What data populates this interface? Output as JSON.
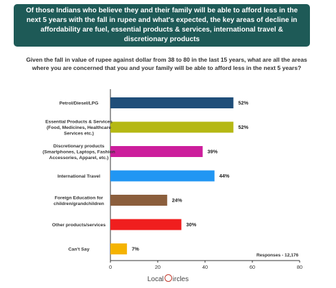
{
  "banner": "Of those Indians who believe they and their family will be able to afford less in the next 5 years with the fall in rupee and what's expected, the key areas of decline in affordability are fuel, essential products & services, international travel & discretionary products",
  "question": "Given the fall in value of rupee against dollar from 38 to 80 in the last 15 years, what are all the areas where you are concerned that you and your family will be able to afford less in the next 5 years?",
  "responses": "Responses - 12,176",
  "logo": {
    "left": "Local",
    "right": "ircles"
  },
  "chart_data": {
    "type": "bar",
    "orientation": "horizontal",
    "categories": [
      [
        "Petrol/Diesel/LPG"
      ],
      [
        "Essential Products & Services",
        "(Food, Medicines, Healthcare",
        "Services etc.)"
      ],
      [
        "Discretionary products",
        "(Smartphones, Laptops, Fashion",
        "Accessories, Apparel, etc.)"
      ],
      [
        "International Travel"
      ],
      [
        "Foreign Education for",
        "children/grandchildren"
      ],
      [
        "Other products/services"
      ],
      [
        "Can't Say"
      ]
    ],
    "values": [
      52,
      52,
      39,
      44,
      24,
      30,
      7
    ],
    "value_labels": [
      "52%",
      "52%",
      "39%",
      "44%",
      "24%",
      "30%",
      "7%"
    ],
    "colors": [
      "#1f4e79",
      "#b5b814",
      "#cc1e9c",
      "#2196f3",
      "#8b5e3c",
      "#f01e1e",
      "#f5b300"
    ],
    "xticks": [
      0,
      20,
      40,
      60,
      80
    ],
    "xlim": [
      0,
      80
    ],
    "grid": false
  }
}
